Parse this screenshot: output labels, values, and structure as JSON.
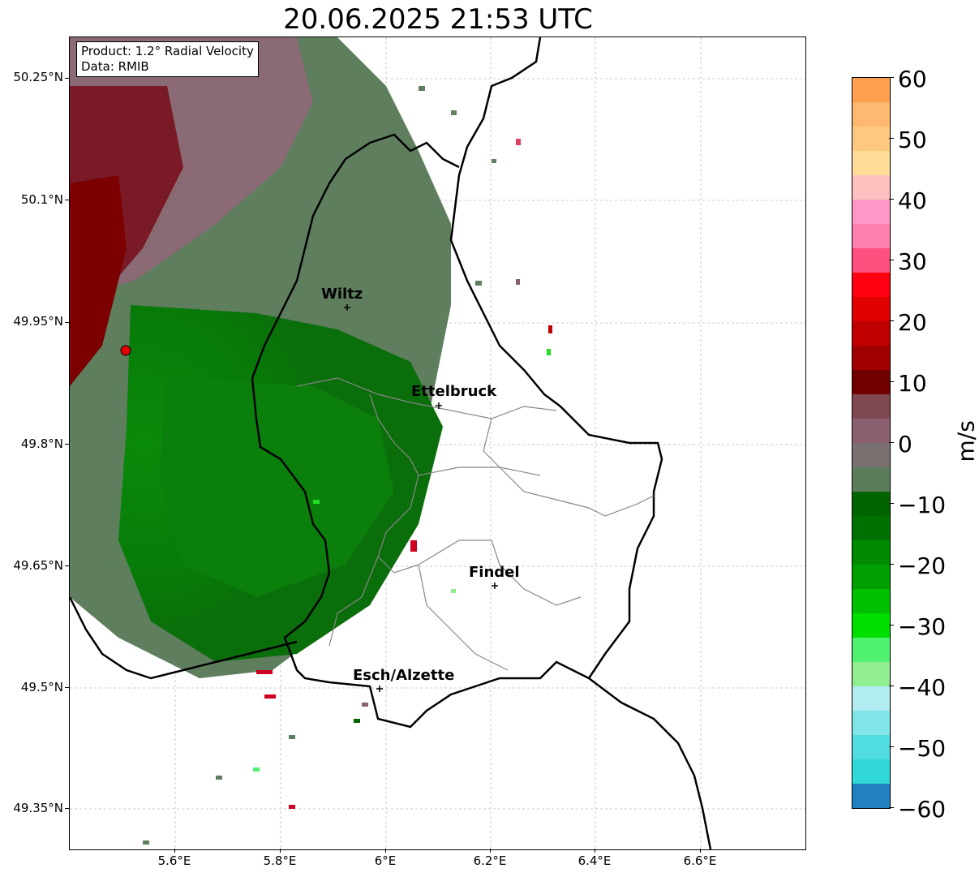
{
  "title": "20.06.2025 21:53 UTC",
  "info_box": {
    "product": "Product: 1.2° Radial Velocity",
    "source": "Data: RMIB"
  },
  "latitude_ticks": [
    "50.25°N",
    "50.1°N",
    "49.95°N",
    "49.8°N",
    "49.65°N",
    "49.5°N",
    "49.35°N"
  ],
  "longitude_ticks": [
    "5.6°E",
    "5.8°E",
    "6°E",
    "6.2°E",
    "6.4°E",
    "6.6°E"
  ],
  "cities": [
    {
      "name": "Wiltz"
    },
    {
      "name": "Ettelbruck"
    },
    {
      "name": "Findel"
    },
    {
      "name": "Esch/Alzette"
    }
  ],
  "colorbar": {
    "unit": "m/s",
    "min": -60,
    "max": 60,
    "ticks": [
      "60",
      "50",
      "40",
      "30",
      "20",
      "10",
      "0",
      "−10",
      "−20",
      "−30",
      "−40",
      "−50",
      "−60"
    ],
    "colors": {
      "approaching_dark": "#006400",
      "approaching_bright": "#00e000",
      "approaching_light": "#90ee90",
      "approaching_cyan": "#30d8d8",
      "approaching_blue": "#2080c0",
      "near_zero_green": "#5c7d5c",
      "near_zero_red": "#8a6070",
      "receding_dark": "#700000",
      "receding_red": "#ff0000",
      "receding_pink": "#ff80c0",
      "receding_orange": "#ffa050"
    }
  },
  "radar_site_color": "#e00000"
}
